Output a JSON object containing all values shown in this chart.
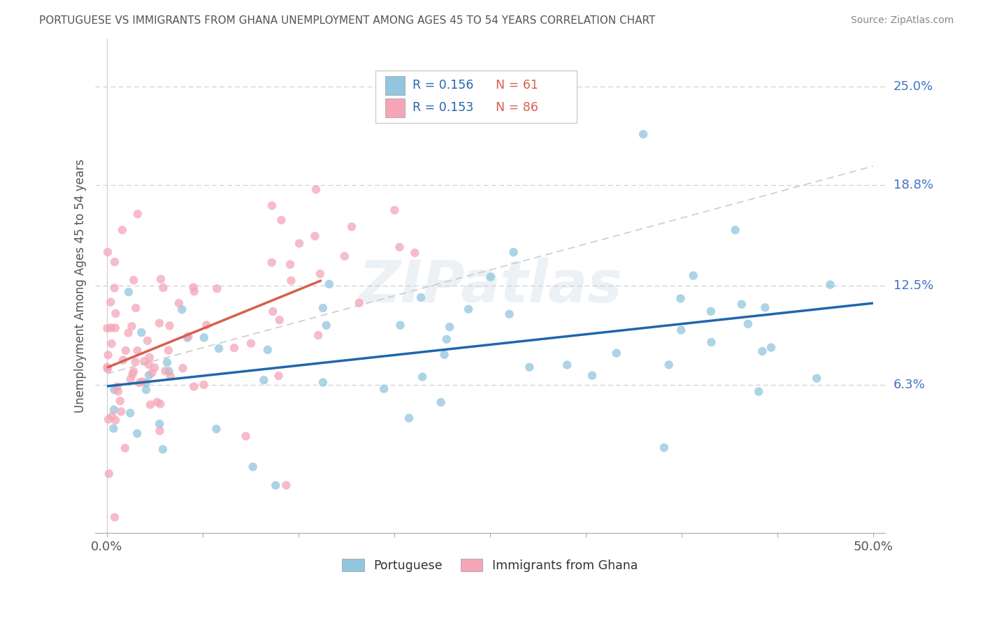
{
  "title": "PORTUGUESE VS IMMIGRANTS FROM GHANA UNEMPLOYMENT AMONG AGES 45 TO 54 YEARS CORRELATION CHART",
  "source": "Source: ZipAtlas.com",
  "ylabel": "Unemployment Among Ages 45 to 54 years",
  "ytick_labels": [
    "6.3%",
    "12.5%",
    "18.8%",
    "25.0%"
  ],
  "ytick_values": [
    0.063,
    0.125,
    0.188,
    0.25
  ],
  "xlim": [
    0.0,
    0.5
  ],
  "ylim": [
    -0.03,
    0.28
  ],
  "watermark": "ZIPatlas",
  "legend_r1": "R = 0.156",
  "legend_n1": "N = 61",
  "legend_r2": "R = 0.153",
  "legend_n2": "N = 86",
  "blue_color": "#92c5de",
  "pink_color": "#f4a6b8",
  "line_blue_color": "#2166ac",
  "line_pink_color": "#d6604d",
  "ref_line_color": "#cccccc",
  "title_color": "#555555",
  "legend_text_color": "#2166ac",
  "legend_n_color": "#d6604d",
  "grid_color": "#cccccc",
  "source_color": "#888888",
  "ytick_color": "#4472c4",
  "xtick_color": "#555555",
  "ylabel_color": "#555555"
}
